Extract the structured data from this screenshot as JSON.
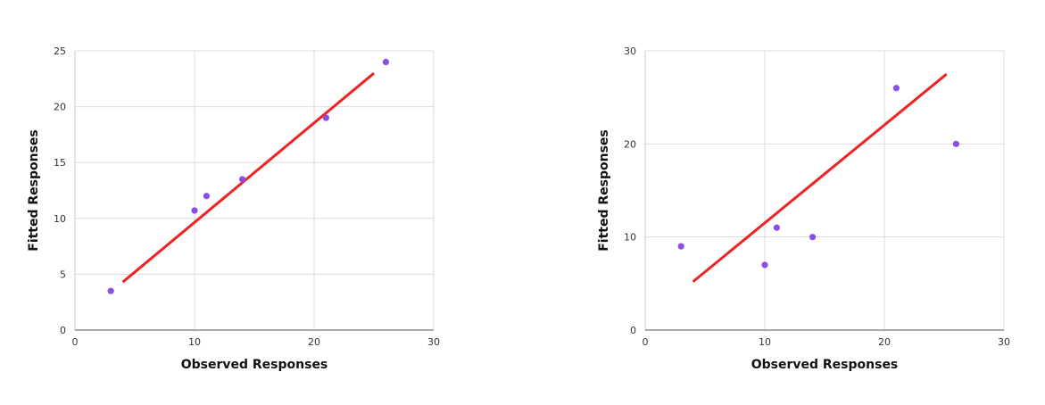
{
  "chart_data": [
    {
      "type": "scatter",
      "xlabel": "Observed Responses",
      "ylabel": "Fitted Responses",
      "xlim": [
        0,
        30
      ],
      "ylim": [
        0,
        25
      ],
      "xticks": [
        0,
        10,
        20,
        30
      ],
      "yticks": [
        0,
        5,
        10,
        15,
        20,
        25
      ],
      "grid": true,
      "series": [
        {
          "kind": "points",
          "color": "#8b4ee8",
          "x": [
            3,
            10,
            11,
            14,
            21,
            26
          ],
          "y": [
            3.5,
            10.7,
            12,
            13.5,
            19,
            24
          ]
        },
        {
          "kind": "fit-line",
          "color": "#ee2222",
          "x": [
            4,
            25
          ],
          "y": [
            4.3,
            23
          ]
        }
      ]
    },
    {
      "type": "scatter",
      "xlabel": "Observed Responses",
      "ylabel": "Fitted Responses",
      "xlim": [
        0,
        30
      ],
      "ylim": [
        0,
        30
      ],
      "xticks": [
        0,
        10,
        20,
        30
      ],
      "yticks": [
        0,
        10,
        20,
        30
      ],
      "grid": true,
      "series": [
        {
          "kind": "points",
          "color": "#8b4ee8",
          "x": [
            3,
            10,
            11,
            14,
            21,
            26
          ],
          "y": [
            9,
            7,
            11,
            10,
            26,
            20
          ]
        },
        {
          "kind": "fit-line",
          "color": "#ee2222",
          "x": [
            4,
            25.2
          ],
          "y": [
            5.2,
            27.5
          ]
        }
      ]
    }
  ]
}
